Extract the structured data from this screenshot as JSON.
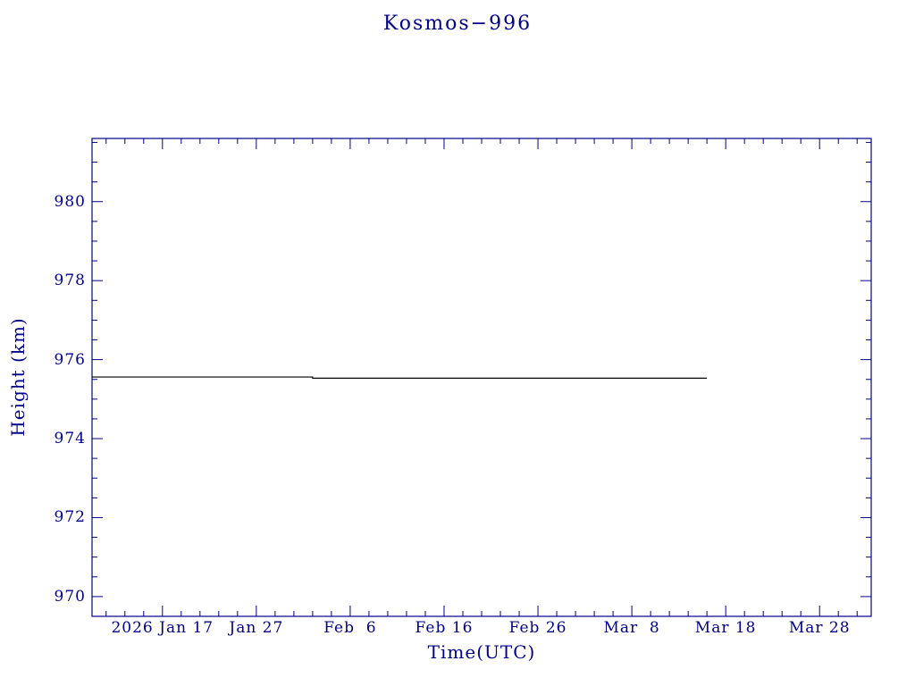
{
  "chart_data": {
    "type": "line",
    "title": "Kosmos−996",
    "xlabel": "Time(UTC)",
    "ylabel": "Height (km)",
    "axis_color": "#00008b",
    "text_color": "#00008b",
    "line_color": "#000000",
    "grid": false,
    "legend": false,
    "x_value_unit": "day_of_year_2026",
    "x_range": [
      9.5,
      92.5
    ],
    "y_range": [
      969.5,
      981.6
    ],
    "x_ticks": [
      {
        "label": "2026 Jan 17",
        "value": 17
      },
      {
        "label": "Jan 27",
        "value": 27
      },
      {
        "label": "Feb  6",
        "value": 37
      },
      {
        "label": "Feb 16",
        "value": 47
      },
      {
        "label": "Feb 26",
        "value": 57
      },
      {
        "label": "Mar  8",
        "value": 67
      },
      {
        "label": "Mar 18",
        "value": 77
      },
      {
        "label": "Mar 28",
        "value": 87
      }
    ],
    "x_minor_step": 2,
    "y_ticks": [
      {
        "label": "970",
        "value": 970
      },
      {
        "label": "972",
        "value": 972
      },
      {
        "label": "974",
        "value": 974
      },
      {
        "label": "976",
        "value": 976
      },
      {
        "label": "978",
        "value": 978
      },
      {
        "label": "980",
        "value": 980
      }
    ],
    "y_minor_step": 0.5,
    "series": [
      {
        "name": "height",
        "points": [
          [
            9.5,
            975.56
          ],
          [
            33,
            975.56
          ],
          [
            33,
            975.53
          ],
          [
            75,
            975.53
          ]
        ]
      }
    ]
  }
}
